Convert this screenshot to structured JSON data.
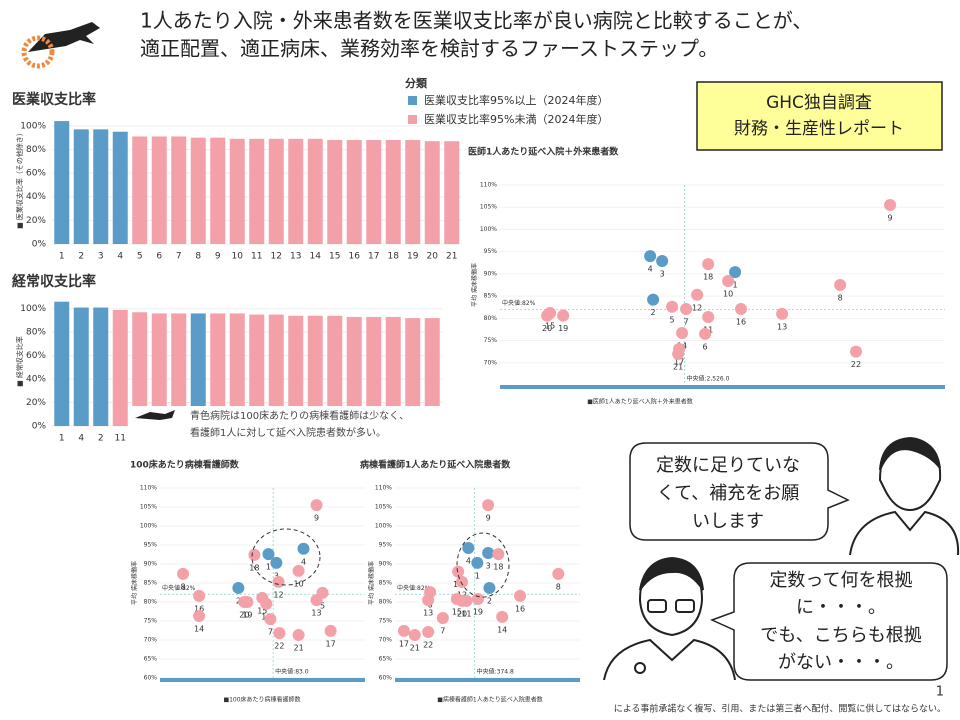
{
  "header": {
    "lines": [
      "1人あたり入院・外来患者数を医業収支比率が良い病院と比較することが、",
      "適正配置、適正病床、業務効率を検討するファーストステップ。"
    ]
  },
  "badge": [
    "GHC独自調査",
    "財務・生産性レポート"
  ],
  "note": [
    "青色病院は100床あたりの病棟看護師は少なく、",
    "看護師1人に対して延べ入院患者数が多い。"
  ],
  "bubbles": [
    [
      "定数に足りていな",
      "くて、補充をお願",
      "いします"
    ],
    [
      "定数って何を根拠",
      "に・・・。",
      "でも、こちらも根拠",
      "がない・・・。"
    ]
  ],
  "page_number": "1",
  "footer": "による事前承諾なく複写、引用、または第三者へ配付、閲覧に供してはならない。",
  "chart_data": [
    {
      "type": "bar",
      "title": "医業収支比率",
      "y_label": "■ 医業収支比率（その他除き）",
      "categories": [
        "1",
        "2",
        "3",
        "4",
        "5",
        "6",
        "7",
        "8",
        "9",
        "10",
        "11",
        "12",
        "13",
        "14",
        "15",
        "16",
        "17",
        "18",
        "19",
        "20",
        "21"
      ],
      "values": [
        104,
        97,
        97,
        95,
        91,
        91,
        91,
        90,
        90,
        89,
        89,
        89,
        89,
        89,
        88,
        88,
        88,
        88,
        88,
        87,
        87
      ],
      "colors": [
        "#5b9bc8",
        "#5b9bc8",
        "#5b9bc8",
        "#5b9bc8",
        "#f4a0a8",
        "#f4a0a8",
        "#f4a0a8",
        "#f4a0a8",
        "#f4a0a8",
        "#f4a0a8",
        "#f4a0a8",
        "#f4a0a8",
        "#f4a0a8",
        "#f4a0a8",
        "#f4a0a8",
        "#f4a0a8",
        "#f4a0a8",
        "#f4a0a8",
        "#f4a0a8",
        "#f4a0a8",
        "#f4a0a8"
      ],
      "ylim": [
        0,
        110
      ],
      "yticks": [
        {
          "value": 0,
          "label": "0%"
        },
        {
          "value": 20,
          "label": "20%"
        },
        {
          "value": 40,
          "label": "40%"
        },
        {
          "value": 60,
          "label": "60%"
        },
        {
          "value": 80,
          "label": "80%"
        },
        {
          "value": 100,
          "label": "100%"
        }
      ],
      "legend": {
        "title": "分類",
        "items": [
          {
            "name": "医業収支比率95%以上（2024年度）",
            "color": "#5b9bc8"
          },
          {
            "name": "医業収支比率95%未満（2024年度）",
            "color": "#f4a0a8"
          }
        ]
      }
    },
    {
      "type": "bar",
      "title": "経常収支比率",
      "y_label": "■ 経常収支比率",
      "categories": [
        "1",
        "4",
        "2",
        "11",
        null,
        null,
        null,
        null,
        null,
        null,
        null,
        null,
        null,
        null,
        null,
        null,
        null,
        null,
        null,
        null
      ],
      "values": [
        106,
        101,
        101,
        99,
        97,
        96,
        96,
        96,
        96,
        96,
        95,
        95,
        94,
        94,
        94,
        93,
        93,
        93,
        92,
        92
      ],
      "colors": [
        "#5b9bc8",
        "#5b9bc8",
        "#5b9bc8",
        "#f4a0a8",
        "#f4a0a8",
        "#f4a0a8",
        "#f4a0a8",
        "#5b9bc8",
        "#f4a0a8",
        "#f4a0a8",
        "#f4a0a8",
        "#f4a0a8",
        "#f4a0a8",
        "#f4a0a8",
        "#f4a0a8",
        "#f4a0a8",
        "#f4a0a8",
        "#f4a0a8",
        "#f4a0a8",
        "#f4a0a8"
      ],
      "ylim": [
        0,
        110
      ],
      "yticks": [
        {
          "value": 0,
          "label": "0%"
        },
        {
          "value": 20,
          "label": "20%"
        },
        {
          "value": 40,
          "label": "40%"
        },
        {
          "value": 60,
          "label": "60%"
        },
        {
          "value": 80,
          "label": "80%"
        },
        {
          "value": 100,
          "label": "100%"
        }
      ]
    },
    {
      "type": "scatter",
      "title": "医師1人あたり延べ入院＋外来患者数",
      "x_label": "■医師1人あたり延べ入院＋外来患者数",
      "y_label": "平均 病床稼働率",
      "xlim": [
        1340,
        4200
      ],
      "ylim": [
        65,
        110
      ],
      "yticks": [
        {
          "value": 70,
          "label": "70%"
        },
        {
          "value": 75,
          "label": "75%"
        },
        {
          "value": 80,
          "label": "80%"
        },
        {
          "value": 85,
          "label": "85%"
        },
        {
          "value": 90,
          "label": "90%"
        },
        {
          "value": 95,
          "label": "95%"
        },
        {
          "value": 100,
          "label": "100%"
        },
        {
          "value": 105,
          "label": "105%"
        },
        {
          "value": 110,
          "label": "110%"
        }
      ],
      "median_x": {
        "value": 2526,
        "label": "中央値:2,526.0"
      },
      "median_y": {
        "value": 82,
        "label": "中央値:82%"
      },
      "points": [
        {
          "label": "9",
          "x": 3847,
          "y": 105.5,
          "color": "#f4a0a8"
        },
        {
          "label": "4",
          "x": 2305,
          "y": 94.0,
          "color": "#5b9bc8"
        },
        {
          "label": "3",
          "x": 2382,
          "y": 92.9,
          "color": "#5b9bc8"
        },
        {
          "label": "18",
          "x": 2678,
          "y": 92.2,
          "color": "#f4a0a8"
        },
        {
          "label": "1",
          "x": 2851,
          "y": 90.4,
          "color": "#5b9bc8"
        },
        {
          "label": "10",
          "x": 2806,
          "y": 88.4,
          "color": "#f4a0a8"
        },
        {
          "label": "8",
          "x": 3526,
          "y": 87.5,
          "color": "#f4a0a8"
        },
        {
          "label": "12",
          "x": 2607,
          "y": 85.3,
          "color": "#f4a0a8"
        },
        {
          "label": "2",
          "x": 2324,
          "y": 84.2,
          "color": "#5b9bc8"
        },
        {
          "label": "5",
          "x": 2446,
          "y": 82.6,
          "color": "#f4a0a8"
        },
        {
          "label": "7",
          "x": 2536,
          "y": 82.1,
          "color": "#f4a0a8"
        },
        {
          "label": "16",
          "x": 2889,
          "y": 82.1,
          "color": "#f4a0a8"
        },
        {
          "label": "15",
          "x": 1662,
          "y": 81.2,
          "color": "#f4a0a8"
        },
        {
          "label": "20",
          "x": 1643,
          "y": 80.6,
          "color": "#f4a0a8"
        },
        {
          "label": "19",
          "x": 1746,
          "y": 80.6,
          "color": "#f4a0a8"
        },
        {
          "label": "13",
          "x": 3153,
          "y": 81.0,
          "color": "#f4a0a8"
        },
        {
          "label": "11",
          "x": 2678,
          "y": 80.3,
          "color": "#f4a0a8"
        },
        {
          "label": "14",
          "x": 2510,
          "y": 76.7,
          "color": "#f4a0a8"
        },
        {
          "label": "6",
          "x": 2658,
          "y": 76.5,
          "color": "#f4a0a8"
        },
        {
          "label": "17",
          "x": 2491,
          "y": 73.1,
          "color": "#f4a0a8"
        },
        {
          "label": "21",
          "x": 2485,
          "y": 72.0,
          "color": "#f4a0a8"
        },
        {
          "label": "22",
          "x": 3628,
          "y": 72.5,
          "color": "#f4a0a8"
        }
      ]
    },
    {
      "type": "scatter",
      "title": "100床あたり病棟看護師数",
      "x_label": "■100床あたり病棟看護師数",
      "y_label": "平均 病床稼働率",
      "xlim": [
        30,
        126
      ],
      "ylim": [
        60,
        110
      ],
      "yticks": [
        {
          "value": 60,
          "label": "60%"
        },
        {
          "value": 65,
          "label": "65%"
        },
        {
          "value": 70,
          "label": "70%"
        },
        {
          "value": 75,
          "label": "75%"
        },
        {
          "value": 80,
          "label": "80%"
        },
        {
          "value": 85,
          "label": "85%"
        },
        {
          "value": 90,
          "label": "90%"
        },
        {
          "value": 95,
          "label": "95%"
        },
        {
          "value": 100,
          "label": "100%"
        },
        {
          "value": 105,
          "label": "105%"
        },
        {
          "value": 110,
          "label": "110%"
        }
      ],
      "median_x": {
        "value": 83,
        "label": "中央値:83.0"
      },
      "median_y": {
        "value": 82,
        "label": "中央値:82%"
      },
      "points": [
        {
          "label": "9",
          "x": 103.3,
          "y": 105.5,
          "color": "#f4a0a8"
        },
        {
          "label": "4",
          "x": 97.2,
          "y": 94.0,
          "color": "#5b9bc8"
        },
        {
          "label": "1",
          "x": 80.8,
          "y": 92.6,
          "color": "#5b9bc8"
        },
        {
          "label": "18",
          "x": 74.2,
          "y": 92.4,
          "color": "#f4a0a8"
        },
        {
          "label": "3",
          "x": 84.5,
          "y": 90.3,
          "color": "#5b9bc8"
        },
        {
          "label": "10",
          "x": 94.9,
          "y": 88.2,
          "color": "#f4a0a8"
        },
        {
          "label": "8",
          "x": 40.8,
          "y": 87.4,
          "color": "#f4a0a8"
        },
        {
          "label": "16",
          "x": 48.3,
          "y": 81.6,
          "color": "#f4a0a8"
        },
        {
          "label": "2",
          "x": 66.7,
          "y": 83.7,
          "color": "#5b9bc8"
        },
        {
          "label": "12",
          "x": 85.5,
          "y": 85.3,
          "color": "#f4a0a8"
        },
        {
          "label": "5",
          "x": 106.1,
          "y": 82.4,
          "color": "#f4a0a8"
        },
        {
          "label": "13",
          "x": 103.3,
          "y": 80.5,
          "color": "#f4a0a8"
        },
        {
          "label": "20",
          "x": 69.5,
          "y": 80.0,
          "color": "#f4a0a8"
        },
        {
          "label": "19",
          "x": 70.9,
          "y": 80.0,
          "color": "#f4a0a8"
        },
        {
          "label": "15",
          "x": 77.9,
          "y": 81.1,
          "color": "#f4a0a8"
        },
        {
          "label": "11",
          "x": 79.8,
          "y": 79.5,
          "color": "#f4a0a8"
        },
        {
          "label": "7",
          "x": 81.7,
          "y": 75.5,
          "color": "#f4a0a8"
        },
        {
          "label": "14",
          "x": 48.3,
          "y": 76.3,
          "color": "#f4a0a8"
        },
        {
          "label": "22",
          "x": 85.9,
          "y": 71.8,
          "color": "#f4a0a8"
        },
        {
          "label": "21",
          "x": 94.9,
          "y": 71.3,
          "color": "#f4a0a8"
        },
        {
          "label": "17",
          "x": 109.9,
          "y": 72.4,
          "color": "#f4a0a8"
        }
      ]
    },
    {
      "type": "scatter",
      "title": "病棟看護師1人あたり延べ入院患者数",
      "x_label": "■病棟看護師1人あたり延べ入院患者数",
      "y_label": "平均 病床稼働率",
      "xlim": [
        250,
        540
      ],
      "ylim": [
        60,
        110
      ],
      "yticks": [
        {
          "value": 60,
          "label": "60%"
        },
        {
          "value": 65,
          "label": "65%"
        },
        {
          "value": 70,
          "label": "70%"
        },
        {
          "value": 75,
          "label": "75%"
        },
        {
          "value": 80,
          "label": "80%"
        },
        {
          "value": 85,
          "label": "85%"
        },
        {
          "value": 90,
          "label": "90%"
        },
        {
          "value": 95,
          "label": "95%"
        },
        {
          "value": 100,
          "label": "100%"
        },
        {
          "value": 105,
          "label": "105%"
        },
        {
          "value": 110,
          "label": "110%"
        }
      ],
      "median_x": {
        "value": 374.8,
        "label": "中央値:374.8"
      },
      "median_y": {
        "value": 82,
        "label": "中央値:82%"
      },
      "points": [
        {
          "label": "9",
          "x": 396,
          "y": 105.5,
          "color": "#f4a0a8"
        },
        {
          "label": "4",
          "x": 365,
          "y": 94.2,
          "color": "#5b9bc8"
        },
        {
          "label": "1",
          "x": 379,
          "y": 90.3,
          "color": "#5b9bc8"
        },
        {
          "label": "3",
          "x": 396,
          "y": 92.9,
          "color": "#5b9bc8"
        },
        {
          "label": "18",
          "x": 412,
          "y": 92.6,
          "color": "#f4a0a8"
        },
        {
          "label": "10",
          "x": 349,
          "y": 88.0,
          "color": "#f4a0a8"
        },
        {
          "label": "12",
          "x": 355,
          "y": 85.3,
          "color": "#f4a0a8"
        },
        {
          "label": "2",
          "x": 398,
          "y": 83.7,
          "color": "#5b9bc8"
        },
        {
          "label": "16",
          "x": 446,
          "y": 81.6,
          "color": "#f4a0a8"
        },
        {
          "label": "8",
          "x": 506,
          "y": 87.4,
          "color": "#f4a0a8"
        },
        {
          "label": "6",
          "x": 305,
          "y": 82.6,
          "color": "#f4a0a8"
        },
        {
          "label": "13",
          "x": 302,
          "y": 80.5,
          "color": "#f4a0a8"
        },
        {
          "label": "15",
          "x": 347,
          "y": 80.8,
          "color": "#f4a0a8"
        },
        {
          "label": "20",
          "x": 355,
          "y": 80.3,
          "color": "#f4a0a8"
        },
        {
          "label": "11",
          "x": 362,
          "y": 80.3,
          "color": "#f4a0a8"
        },
        {
          "label": "19",
          "x": 380,
          "y": 80.8,
          "color": "#f4a0a8"
        },
        {
          "label": "7",
          "x": 325,
          "y": 75.8,
          "color": "#f4a0a8"
        },
        {
          "label": "14",
          "x": 418,
          "y": 76.1,
          "color": "#f4a0a8"
        },
        {
          "label": "17",
          "x": 264,
          "y": 72.4,
          "color": "#f4a0a8"
        },
        {
          "label": "21",
          "x": 281,
          "y": 71.3,
          "color": "#f4a0a8"
        },
        {
          "label": "22",
          "x": 302,
          "y": 72.1,
          "color": "#f4a0a8"
        }
      ]
    }
  ]
}
